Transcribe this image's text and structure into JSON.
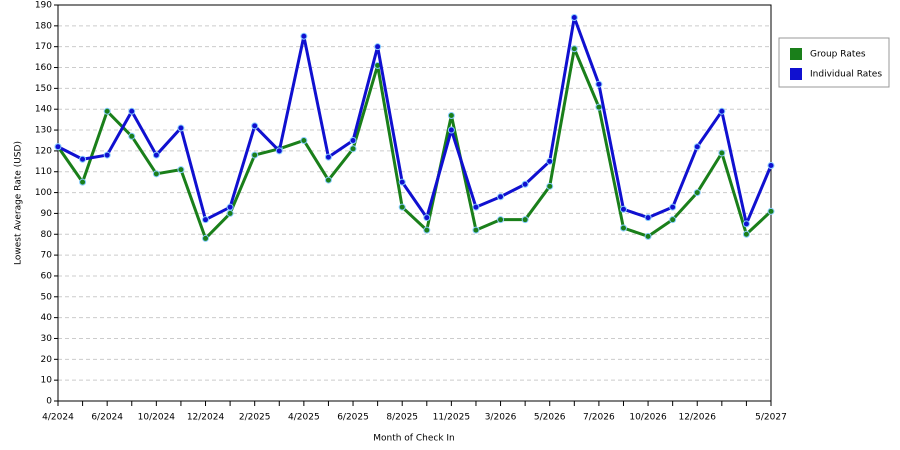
{
  "chart_data": {
    "type": "line",
    "x_label": "Month of Check In",
    "y_label": "Lowest Average Rate (USD)",
    "categories": [
      "4/2024",
      null,
      "6/2024",
      null,
      "10/2024",
      null,
      "12/2024",
      null,
      "2/2025",
      null,
      "4/2025",
      null,
      "6/2025",
      null,
      "8/2025",
      null,
      "11/2025",
      null,
      "3/2026",
      null,
      "5/2026",
      null,
      "7/2026",
      null,
      "10/2026",
      null,
      "12/2026",
      null,
      null,
      "5/2027"
    ],
    "series": [
      {
        "name": "Group Rates",
        "color": "#1a7f1a",
        "values": [
          122,
          105,
          139,
          127,
          109,
          111,
          78,
          90,
          118,
          121,
          125,
          106,
          121,
          161,
          93,
          82,
          137,
          82,
          87,
          87,
          103,
          169,
          141,
          83,
          79,
          87,
          100,
          119,
          80,
          91
        ]
      },
      {
        "name": "Individual Rates",
        "color": "#1010d0",
        "values": [
          122,
          116,
          118,
          139,
          118,
          131,
          87,
          93,
          132,
          120,
          175,
          117,
          125,
          170,
          105,
          88,
          130,
          93,
          98,
          104,
          115,
          184,
          152,
          92,
          88,
          93,
          122,
          139,
          85,
          113
        ]
      }
    ],
    "ylim": [
      0,
      190
    ],
    "yticks": [
      0,
      10,
      20,
      30,
      40,
      50,
      60,
      70,
      80,
      90,
      100,
      110,
      120,
      130,
      140,
      150,
      160,
      170,
      180,
      190
    ],
    "grid": true,
    "legend": "right"
  }
}
